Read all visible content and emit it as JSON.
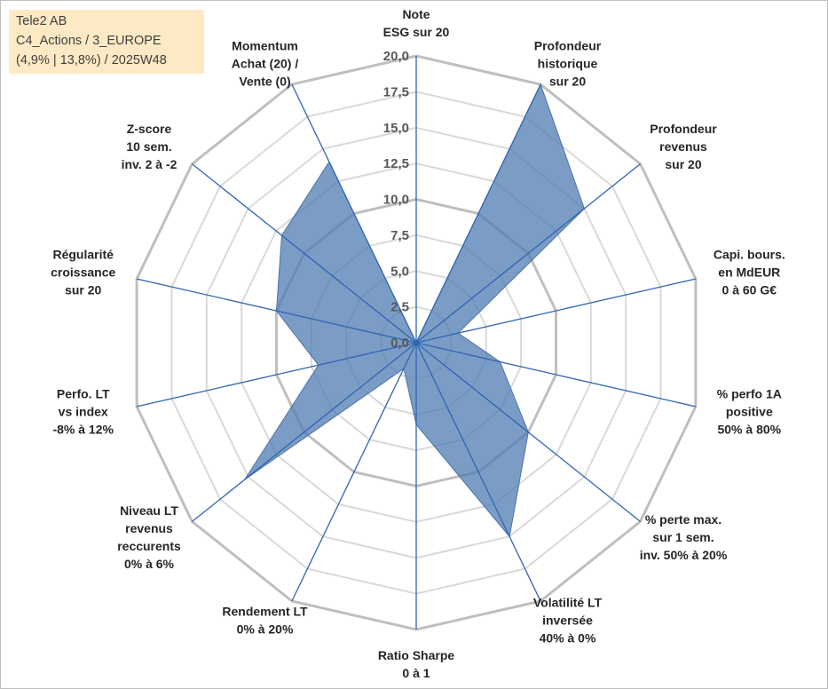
{
  "title_box": {
    "line1": "Tele2 AB",
    "line2": "C4_Actions / 3_EUROPE",
    "line3": "(4,9% | 13,8%) / 2025W48"
  },
  "chart_data": {
    "type": "radar",
    "rlim": [
      0,
      20
    ],
    "ticks": [
      0,
      2.5,
      5,
      7.5,
      10,
      12.5,
      15,
      17.5,
      20
    ],
    "tick_labels": [
      "0,0",
      "2,5",
      "5,0",
      "7,5",
      "10,0",
      "12,5",
      "15,0",
      "17,5",
      "20,0"
    ],
    "axes": [
      [
        "Note",
        "ESG sur 20"
      ],
      [
        "Profondeur",
        "historique",
        "sur 20"
      ],
      [
        "Profondeur",
        "revenus",
        "sur 20"
      ],
      [
        "Capi. bours.",
        "en MdEUR",
        "0 à 60 G€"
      ],
      [
        "% perfo 1A",
        "positive",
        "50% à 80%"
      ],
      [
        "% perte max.",
        "sur 1 sem.",
        "inv. 50% à 20%"
      ],
      [
        "Volatilité LT",
        "inversée",
        "40% à 0%"
      ],
      [
        "Ratio Sharpe",
        "0 à 1"
      ],
      [
        "Rendement LT",
        "0% à 20%"
      ],
      [
        "Niveau LT",
        "revenus",
        "reccurents",
        "0% à 6%"
      ],
      [
        "Perfo. LT",
        "vs index",
        "-8% à 12%"
      ],
      [
        "Régularité",
        "croissance",
        "sur 20"
      ],
      [
        "Z-score",
        "10 sem.",
        "inv. 2 à -2"
      ],
      [
        "Momentum",
        "Achat (20) /",
        "Vente (0)"
      ]
    ],
    "values": [
      0,
      20,
      15,
      3,
      6,
      10,
      15,
      5.7,
      2,
      15.3,
      7,
      10,
      12,
      14
    ],
    "fill_color": "#4f7cb2",
    "fill_opacity": 0.75,
    "grid": true,
    "legend": "none"
  }
}
